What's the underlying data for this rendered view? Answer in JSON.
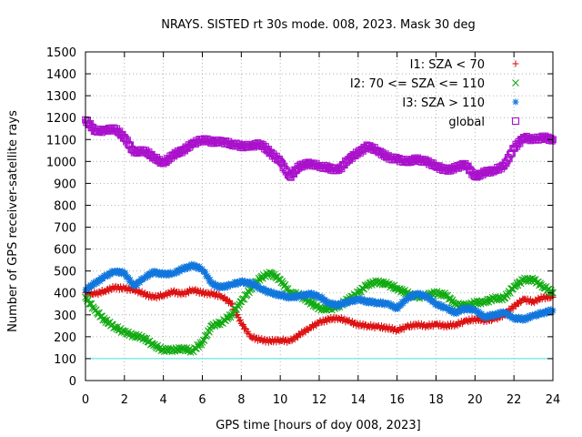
{
  "chart_data": {
    "type": "scatter",
    "title": "NRAYS. SISTED rt 30s mode. 008, 2023. Mask 30 deg",
    "xlabel": "GPS time [hours of doy 008, 2023]",
    "ylabel": "Number of GPS receiver-satellite rays",
    "xlim": [
      0,
      24
    ],
    "ylim": [
      0,
      1500
    ],
    "xticks": [
      0,
      2,
      4,
      6,
      8,
      10,
      12,
      14,
      16,
      18,
      20,
      22,
      24
    ],
    "yticks": [
      0,
      100,
      200,
      300,
      400,
      500,
      600,
      700,
      800,
      900,
      1000,
      1100,
      1200,
      1300,
      1400,
      1500
    ],
    "grid": true,
    "legend_position": "top-right",
    "reference_line": {
      "y": 100,
      "color": "#40e0e0"
    },
    "series": [
      {
        "name": "I1: SZA < 70",
        "marker": "plus",
        "color": "#dd1111",
        "x": [
          0,
          0.5,
          1,
          1.5,
          2,
          2.5,
          3,
          3.5,
          4,
          4.5,
          5,
          5.5,
          6,
          6.5,
          7,
          7.5,
          8,
          8.5,
          9,
          9.5,
          10,
          10.5,
          11,
          11.5,
          12,
          12.5,
          13,
          13.5,
          14,
          14.5,
          15,
          15.5,
          16,
          16.5,
          17,
          17.5,
          18,
          18.5,
          19,
          19.5,
          20,
          20.5,
          21,
          21.5,
          22,
          22.5,
          23,
          23.5,
          24
        ],
        "y": [
          400,
          395,
          410,
          425,
          420,
          415,
          395,
          380,
          390,
          405,
          395,
          415,
          400,
          395,
          385,
          350,
          260,
          200,
          185,
          180,
          185,
          180,
          210,
          240,
          265,
          280,
          285,
          270,
          255,
          250,
          245,
          240,
          230,
          245,
          255,
          250,
          255,
          250,
          255,
          270,
          280,
          275,
          280,
          300,
          340,
          370,
          360,
          380,
          380
        ]
      },
      {
        "name": "I2: 70 <= SZA <= 110",
        "marker": "cross",
        "color": "#11aa11",
        "x": [
          0,
          0.5,
          1,
          1.5,
          2,
          2.5,
          3,
          3.5,
          4,
          4.5,
          5,
          5.5,
          6,
          6.5,
          7,
          7.5,
          8,
          8.5,
          9,
          9.5,
          10,
          10.5,
          11,
          11.5,
          12,
          12.5,
          13,
          13.5,
          14,
          14.5,
          15,
          15.5,
          16,
          16.5,
          17,
          17.5,
          18,
          18.5,
          19,
          19.5,
          20,
          20.5,
          21,
          21.5,
          22,
          22.5,
          23,
          23.5,
          24
        ],
        "y": [
          380,
          320,
          275,
          245,
          220,
          205,
          195,
          160,
          140,
          140,
          145,
          135,
          175,
          250,
          265,
          300,
          360,
          420,
          470,
          490,
          460,
          400,
          390,
          360,
          330,
          325,
          340,
          370,
          400,
          440,
          450,
          440,
          420,
          400,
          380,
          390,
          400,
          390,
          350,
          340,
          355,
          360,
          375,
          375,
          430,
          460,
          460,
          430,
          400
        ]
      },
      {
        "name": "I3: SZA > 110",
        "marker": "star",
        "color": "#1177dd",
        "x": [
          0,
          0.5,
          1,
          1.5,
          2,
          2.5,
          3,
          3.5,
          4,
          4.5,
          5,
          5.5,
          6,
          6.5,
          7,
          7.5,
          8,
          8.5,
          9,
          9.5,
          10,
          10.5,
          11,
          11.5,
          12,
          12.5,
          13,
          13.5,
          14,
          14.5,
          15,
          15.5,
          16,
          16.5,
          17,
          17.5,
          18,
          18.5,
          19,
          19.5,
          20,
          20.5,
          21,
          21.5,
          22,
          22.5,
          23,
          23.5,
          24
        ],
        "y": [
          415,
          445,
          475,
          500,
          490,
          430,
          470,
          495,
          485,
          490,
          510,
          525,
          510,
          440,
          425,
          440,
          450,
          445,
          420,
          400,
          390,
          380,
          385,
          395,
          385,
          350,
          345,
          360,
          370,
          360,
          355,
          350,
          330,
          375,
          395,
          385,
          350,
          330,
          310,
          330,
          320,
          290,
          300,
          310,
          285,
          280,
          295,
          310,
          320
        ]
      },
      {
        "name": "global",
        "marker": "square",
        "color": "#aa11cc",
        "x": [
          0,
          0.5,
          1,
          1.5,
          2,
          2.5,
          3,
          3.5,
          4,
          4.5,
          5,
          5.5,
          6,
          6.5,
          7,
          7.5,
          8,
          8.5,
          9,
          9.5,
          10,
          10.5,
          11,
          11.5,
          12,
          12.5,
          13,
          13.5,
          14,
          14.5,
          15,
          15.5,
          16,
          16.5,
          17,
          17.5,
          18,
          18.5,
          19,
          19.5,
          20,
          20.5,
          21,
          21.5,
          22,
          22.5,
          23,
          23.5,
          24
        ],
        "y": [
          1190,
          1140,
          1140,
          1150,
          1110,
          1040,
          1050,
          1020,
          990,
          1030,
          1050,
          1080,
          1100,
          1090,
          1090,
          1080,
          1070,
          1070,
          1080,
          1040,
          1000,
          930,
          980,
          990,
          980,
          970,
          960,
          1010,
          1040,
          1070,
          1050,
          1020,
          1010,
          1000,
          1010,
          1000,
          980,
          960,
          970,
          990,
          930,
          950,
          960,
          980,
          1060,
          1110,
          1100,
          1110,
          1100
        ]
      }
    ]
  }
}
